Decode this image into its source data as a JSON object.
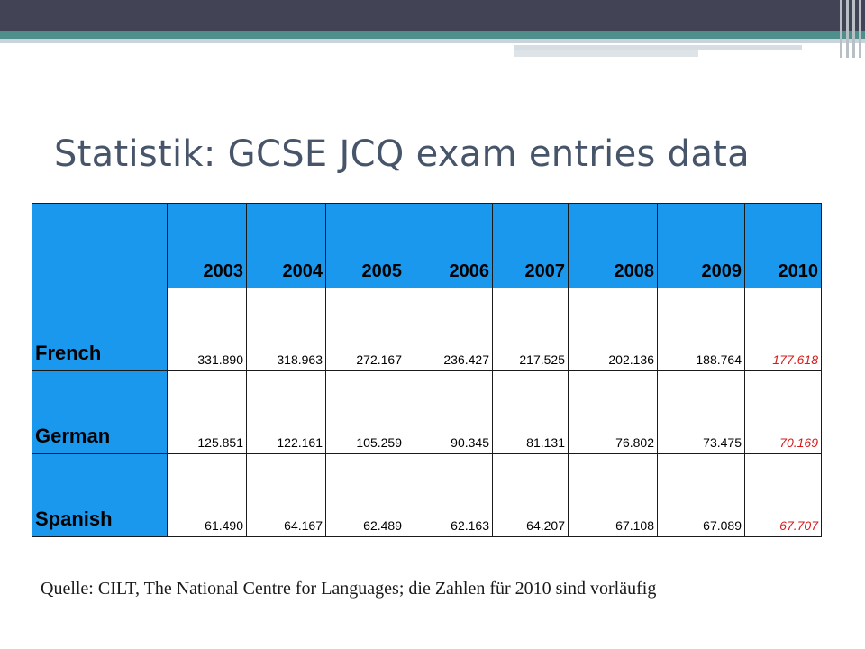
{
  "title": "Statistik: GCSE JCQ exam entries data",
  "table": {
    "years": [
      "2003",
      "2004",
      "2005",
      "2006",
      "2007",
      "2008",
      "2009",
      "2010"
    ],
    "rows": [
      {
        "language": "French",
        "values": [
          "331.890",
          "318.963",
          "272.167",
          "236.427",
          "217.525",
          "202.136",
          "188.764",
          "177.618"
        ]
      },
      {
        "language": "German",
        "values": [
          "125.851",
          "122.161",
          "105.259",
          "90.345",
          "81.131",
          "76.802",
          "73.475",
          "70.169"
        ]
      },
      {
        "language": "Spanish",
        "values": [
          "61.490",
          "64.167",
          "62.489",
          "62.163",
          "64.207",
          "67.108",
          "67.089",
          "67.707"
        ]
      }
    ],
    "provisional_color": "#d81b1b",
    "header_color": "#1a98ee"
  },
  "source": "Quelle: CILT, The National Centre for Languages; die Zahlen für 2010 sind vorläufig",
  "theme": {
    "bar_color": "#424456",
    "accent_color": "#4e8f8c",
    "title_color": "#47556a"
  }
}
